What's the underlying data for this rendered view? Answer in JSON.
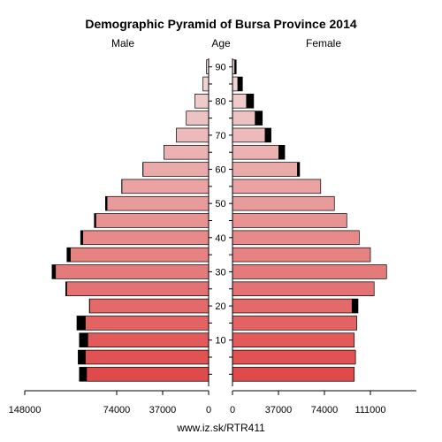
{
  "chart_data": {
    "type": "bar",
    "orientation": "horizontal-pyramid",
    "title": "Demographic Pyramid of Bursa Province 2014",
    "left_label": "Male",
    "center_label": "Age",
    "right_label": "Female",
    "source": "www.iz.sk/RTR411",
    "age_groups": [
      "0-4",
      "5-9",
      "10-14",
      "15-19",
      "20-24",
      "25-29",
      "30-34",
      "35-39",
      "40-44",
      "45-49",
      "50-54",
      "55-59",
      "60-64",
      "65-69",
      "70-74",
      "75-79",
      "80-84",
      "85-89",
      "90+"
    ],
    "age_ticks": [
      10,
      20,
      30,
      40,
      50,
      60,
      70,
      80,
      90
    ],
    "male_xticks": [
      148000,
      74000,
      37000,
      0
    ],
    "female_xticks": [
      0,
      37000,
      74000,
      111000
    ],
    "male_max": 148000,
    "female_max": 148000,
    "series": [
      {
        "name": "Male",
        "values": [
          104000,
          105000,
          104000,
          106000,
          96000,
          115000,
          126000,
          114000,
          103000,
          92000,
          83000,
          70000,
          53000,
          36000,
          26000,
          18000,
          11000,
          4500,
          1700
        ],
        "highlight": [
          6000,
          6000,
          7000,
          7000,
          500,
          1000,
          3000,
          3000,
          2000,
          1500,
          1500,
          500,
          500,
          0,
          0,
          0,
          0,
          0,
          0
        ]
      },
      {
        "name": "Female",
        "values": [
          98000,
          99000,
          98000,
          100000,
          101000,
          114000,
          124000,
          111000,
          102000,
          92000,
          82000,
          71000,
          54000,
          42000,
          31000,
          24000,
          17000,
          8000,
          3000
        ],
        "highlight": [
          0,
          0,
          0,
          0,
          5000,
          0,
          0,
          0,
          0,
          0,
          0,
          0,
          2000,
          5000,
          5000,
          6000,
          6000,
          4000,
          1500
        ]
      }
    ],
    "bar_color_young": "#e04a4a",
    "bar_color_old": "#f0dada",
    "highlight_color": "#000000"
  }
}
